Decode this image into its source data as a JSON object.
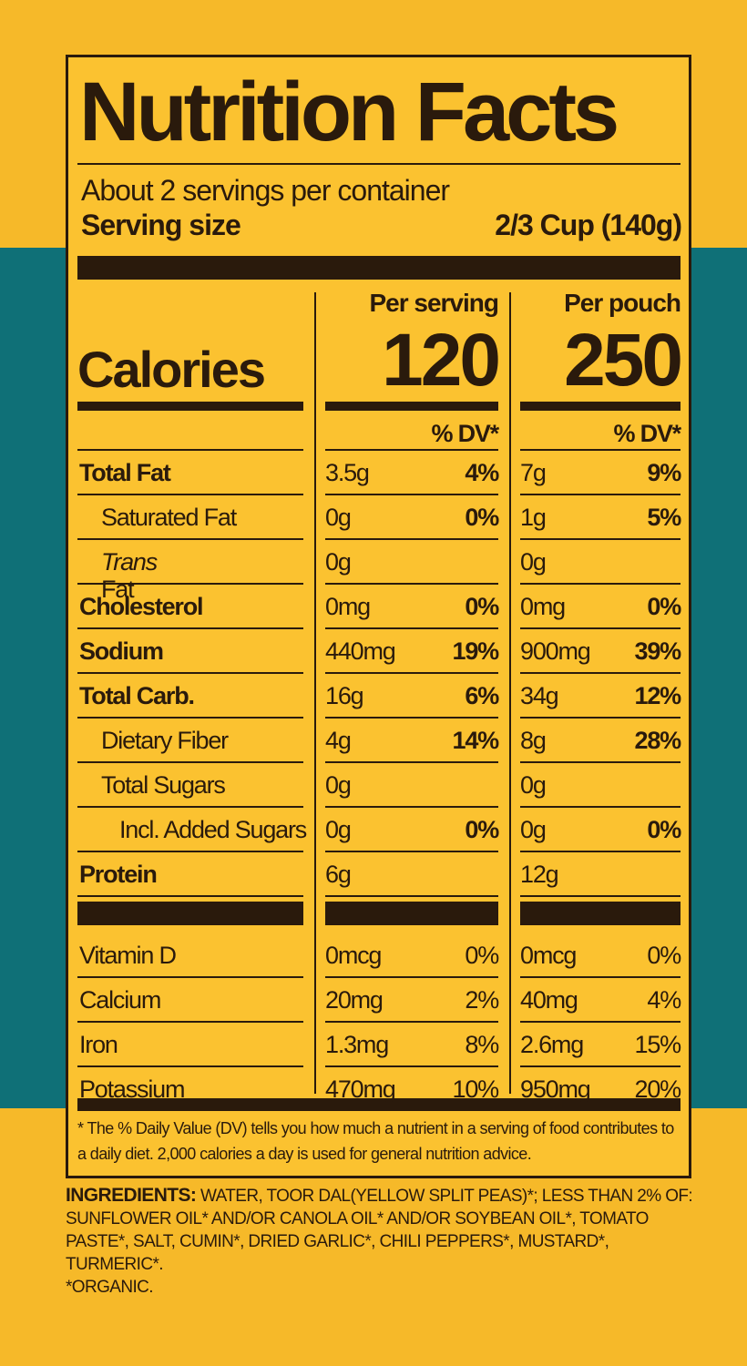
{
  "title": "Nutrition Facts",
  "servings": "About 2 servings per container",
  "serving_size": {
    "label": "Serving size",
    "value": "2/3 Cup (140g)"
  },
  "calories": {
    "label": "Calories",
    "columns": [
      {
        "heading": "Per serving",
        "value": "120"
      },
      {
        "heading": "Per pouch",
        "value": "250"
      }
    ]
  },
  "dv_headings": [
    "% DV*",
    "% DV*"
  ],
  "nutrients": [
    {
      "name": "Total Fat",
      "serving": [
        "3.5g",
        "4%"
      ],
      "pouch": [
        "7g",
        "9%"
      ]
    },
    {
      "name": "Saturated Fat",
      "serving": [
        "0g",
        "0%"
      ],
      "pouch": [
        "1g",
        "5%"
      ]
    },
    {
      "name_italic": "Trans",
      "name": "Fat",
      "serving": [
        "0g",
        null
      ],
      "pouch": [
        "0g",
        null
      ]
    },
    {
      "name": "Cholesterol",
      "serving": [
        "0mg",
        "0%"
      ],
      "pouch": [
        "0mg",
        "0%"
      ]
    },
    {
      "name": "Sodium",
      "serving": [
        "440mg",
        "19%"
      ],
      "pouch": [
        "900mg",
        "39%"
      ]
    },
    {
      "name": "Total Carb.",
      "serving": [
        "16g",
        "6%"
      ],
      "pouch": [
        "34g",
        "12%"
      ]
    },
    {
      "name": "Dietary Fiber",
      "serving": [
        "4g",
        "14%"
      ],
      "pouch": [
        "8g",
        "28%"
      ]
    },
    {
      "name": "Total Sugars",
      "serving": [
        "0g",
        null
      ],
      "pouch": [
        "0g",
        null
      ]
    },
    {
      "name": "Incl. Added Sugars",
      "serving": [
        "0g",
        "0%"
      ],
      "pouch": [
        "0g",
        "0%"
      ]
    },
    {
      "name": "Protein",
      "serving": [
        "6g",
        null
      ],
      "pouch": [
        "12g",
        null
      ]
    }
  ],
  "vitamins": [
    {
      "name": "Vitamin D",
      "serving": [
        "0mcg",
        "0%"
      ],
      "pouch": [
        "0mcg",
        "0%"
      ]
    },
    {
      "name": "Calcium",
      "serving": [
        "20mg",
        "2%"
      ],
      "pouch": [
        "40mg",
        "4%"
      ]
    },
    {
      "name": "Iron",
      "serving": [
        "1.3mg",
        "8%"
      ],
      "pouch": [
        "2.6mg",
        "15%"
      ]
    },
    {
      "name": "Potassium",
      "serving": [
        "470mg",
        "10%"
      ],
      "pouch": [
        "950mg",
        "20%"
      ]
    }
  ],
  "footnote": "* The % Daily Value (DV) tells you how much a nutrient in a serving of food contributes to a daily diet. 2,000 calories a day is used for general nutrition advice.",
  "ingredients": {
    "label": "INGREDIENTS:",
    "text": "WATER, TOOR DAL(YELLOW SPLIT PEAS)*; LESS THAN 2% OF: SUNFLOWER OIL* AND/OR CANOLA OIL* AND/OR SOYBEAN OIL*, TOMATO PASTE*, SALT, CUMIN*, DRIED GARLIC*, CHILI PEPPERS*, MUSTARD*, TURMERIC*.",
    "note": "*ORGANIC."
  }
}
